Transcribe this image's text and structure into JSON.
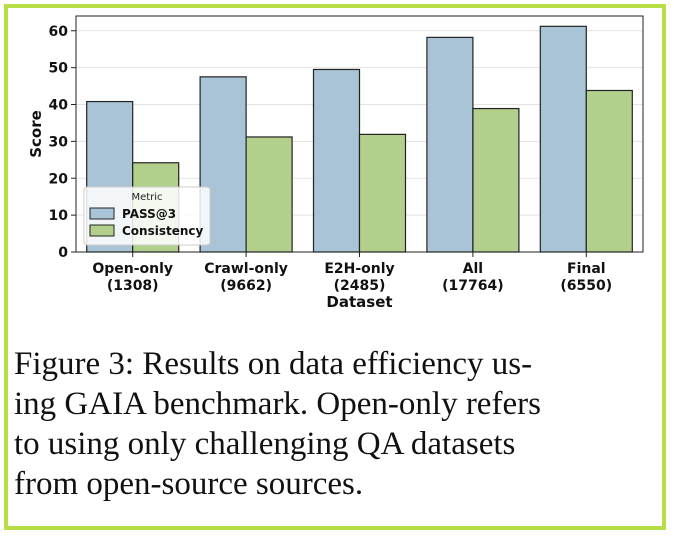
{
  "chart_data": {
    "type": "bar",
    "xlabel": "Dataset",
    "ylabel": "Score",
    "ylim": [
      0,
      64
    ],
    "yticks": [
      0,
      10,
      20,
      30,
      40,
      50,
      60
    ],
    "categories": [
      [
        "Open-only",
        "(1308)"
      ],
      [
        "Crawl-only",
        "(9662)"
      ],
      [
        "E2H-only",
        "(2485)"
      ],
      [
        "All",
        "(17764)"
      ],
      [
        "Final",
        "(6550)"
      ]
    ],
    "legend": {
      "title": "Metric",
      "placement": "left-center"
    },
    "series": [
      {
        "name": "PASS@3",
        "color": "#a9c4d6",
        "values": [
          40.8,
          47.5,
          49.5,
          58.2,
          61.2
        ]
      },
      {
        "name": "Consistency",
        "color": "#b2d08b",
        "values": [
          24.2,
          31.2,
          31.9,
          38.9,
          43.8
        ]
      }
    ],
    "grid": true
  },
  "caption": {
    "lines": [
      "Figure 3: Results on data efficiency us-",
      "ing GAIA benchmark. Open-only refers",
      "to using only challenging QA datasets",
      "from open-source sources."
    ]
  },
  "colors": {
    "border": "#b8df46",
    "bar_edge": "#222222"
  }
}
